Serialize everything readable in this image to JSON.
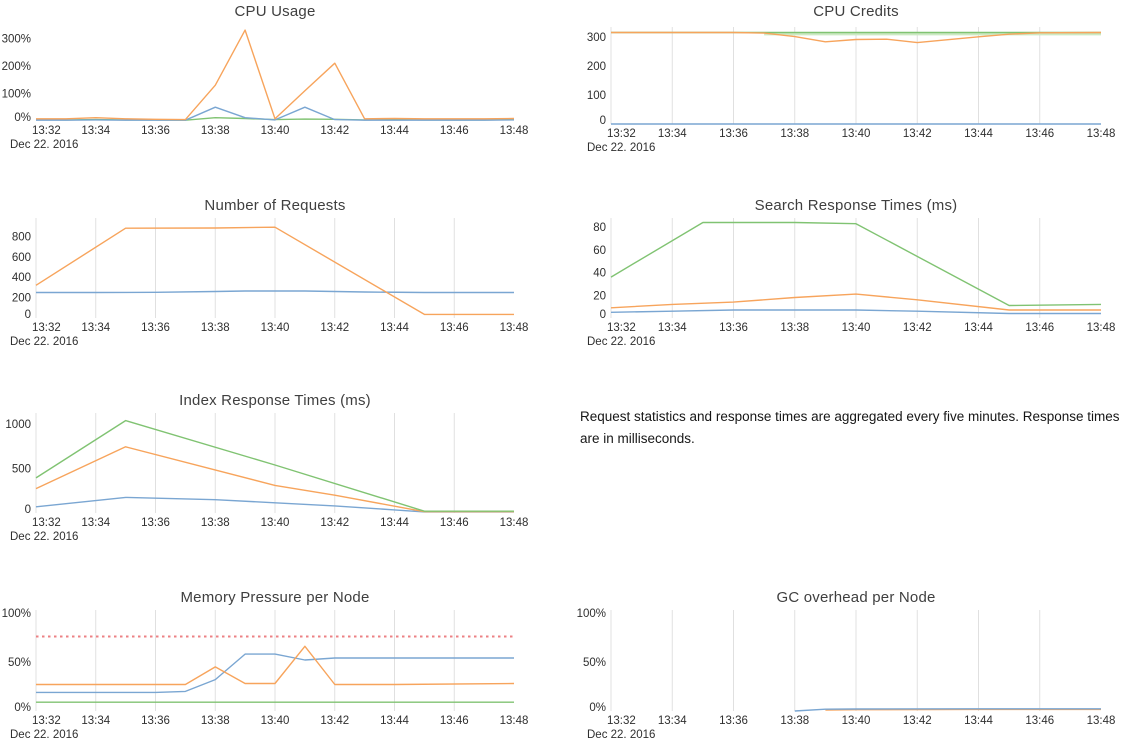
{
  "x_axis": {
    "ticks": [
      "13:32",
      "13:34",
      "13:36",
      "13:38",
      "13:40",
      "13:42",
      "13:44",
      "13:46",
      "13:48"
    ],
    "tick_minutes": [
      32,
      34,
      36,
      38,
      40,
      42,
      44,
      46,
      48
    ],
    "date_label": "Dec 22. 2016"
  },
  "note": {
    "text": "Request statistics and response times are aggregated every five minutes. Response times are in milliseconds."
  },
  "colors": {
    "blue": "#7aa6d2",
    "orange": "#f7a45c",
    "green": "#80c372",
    "palegreen": "#cdeac4",
    "red": "#ec8184",
    "grid": "#e0e0e0",
    "tick_text": "#2f2f2f",
    "title_text": "#3f3f3f"
  },
  "chart_data": [
    {
      "title": "CPU Usage",
      "type": "line",
      "xlim": [
        32,
        48
      ],
      "ylim": [
        0,
        345
      ],
      "grid": false,
      "yticks": [
        {
          "v": 0,
          "label": "0%"
        },
        {
          "v": 100,
          "label": "100%"
        },
        {
          "v": 200,
          "label": "200%"
        },
        {
          "v": 300,
          "label": "300%"
        }
      ],
      "series": [
        {
          "name": "green",
          "color": "green",
          "points": [
            [
              32,
              5
            ],
            [
              33,
              4
            ],
            [
              34,
              5
            ],
            [
              35,
              4
            ],
            [
              36,
              4
            ],
            [
              37,
              3
            ],
            [
              38,
              12
            ],
            [
              39,
              9
            ],
            [
              40,
              5
            ],
            [
              41,
              7
            ],
            [
              42,
              6
            ],
            [
              43,
              4
            ],
            [
              44,
              5
            ],
            [
              45,
              4
            ],
            [
              46,
              4
            ],
            [
              47,
              4
            ],
            [
              48,
              5
            ]
          ]
        },
        {
          "name": "blue",
          "color": "blue",
          "points": [
            [
              32,
              3
            ],
            [
              33,
              3
            ],
            [
              34,
              4
            ],
            [
              35,
              3
            ],
            [
              36,
              3
            ],
            [
              37,
              3
            ],
            [
              38,
              50
            ],
            [
              39,
              12
            ],
            [
              40,
              4
            ],
            [
              41,
              50
            ],
            [
              42,
              5
            ],
            [
              43,
              3
            ],
            [
              44,
              3
            ],
            [
              45,
              3
            ],
            [
              46,
              3
            ],
            [
              47,
              3
            ],
            [
              48,
              4
            ]
          ]
        },
        {
          "name": "orange",
          "color": "orange",
          "points": [
            [
              32,
              8
            ],
            [
              33,
              8
            ],
            [
              34,
              12
            ],
            [
              35,
              8
            ],
            [
              36,
              6
            ],
            [
              37,
              5
            ],
            [
              38,
              130
            ],
            [
              39,
              330
            ],
            [
              40,
              8
            ],
            [
              41,
              110
            ],
            [
              42,
              210
            ],
            [
              43,
              8
            ],
            [
              44,
              9
            ],
            [
              45,
              8
            ],
            [
              46,
              8
            ],
            [
              47,
              8
            ],
            [
              48,
              9
            ]
          ]
        }
      ]
    },
    {
      "title": "CPU Credits",
      "type": "line",
      "xlim": [
        32,
        48
      ],
      "ylim": [
        0,
        335
      ],
      "grid": true,
      "yticks": [
        {
          "v": 0,
          "label": "0"
        },
        {
          "v": 100,
          "label": "100"
        },
        {
          "v": 200,
          "label": "200"
        },
        {
          "v": 300,
          "label": "300"
        }
      ],
      "series": [
        {
          "name": "palegreen",
          "color": "palegreen",
          "width": 3,
          "points": [
            [
              37,
              311
            ],
            [
              48,
              311
            ]
          ]
        },
        {
          "name": "green",
          "color": "green",
          "points": [
            [
              32,
              316
            ],
            [
              48,
              316
            ]
          ]
        },
        {
          "name": "orange",
          "color": "orange",
          "points": [
            [
              32,
              316
            ],
            [
              36,
              316
            ],
            [
              37,
              314
            ],
            [
              38,
              302
            ],
            [
              39,
              284
            ],
            [
              40,
              292
            ],
            [
              41,
              293
            ],
            [
              42,
              281
            ],
            [
              43,
              291
            ],
            [
              44,
              301
            ],
            [
              45,
              310
            ],
            [
              46,
              315
            ],
            [
              48,
              316
            ]
          ]
        },
        {
          "name": "blue",
          "color": "blue",
          "points": [
            [
              32,
              0
            ],
            [
              48,
              0
            ]
          ]
        }
      ]
    },
    {
      "title": "Number of Requests",
      "type": "line",
      "xlim": [
        32,
        48
      ],
      "ylim": [
        0,
        980
      ],
      "grid": true,
      "yticks": [
        {
          "v": 0,
          "label": "0"
        },
        {
          "v": 200,
          "label": "200"
        },
        {
          "v": 400,
          "label": "400"
        },
        {
          "v": 600,
          "label": "600"
        },
        {
          "v": 800,
          "label": "800"
        }
      ],
      "series": [
        {
          "name": "blue",
          "color": "blue",
          "points": [
            [
              32,
              250
            ],
            [
              34,
              250
            ],
            [
              36,
              252
            ],
            [
              38,
              260
            ],
            [
              39,
              265
            ],
            [
              41,
              265
            ],
            [
              43,
              255
            ],
            [
              45,
              250
            ],
            [
              48,
              250
            ]
          ]
        },
        {
          "name": "orange",
          "color": "orange",
          "points": [
            [
              32,
              320
            ],
            [
              35,
              880
            ],
            [
              38,
              882
            ],
            [
              40,
              890
            ],
            [
              45,
              35
            ],
            [
              48,
              35
            ]
          ]
        }
      ]
    },
    {
      "title": "Search Response Times (ms)",
      "type": "line",
      "xlim": [
        32,
        48
      ],
      "ylim": [
        0,
        88
      ],
      "grid": true,
      "yticks": [
        {
          "v": 0,
          "label": "0"
        },
        {
          "v": 20,
          "label": "20"
        },
        {
          "v": 40,
          "label": "40"
        },
        {
          "v": 60,
          "label": "60"
        },
        {
          "v": 80,
          "label": "80"
        }
      ],
      "series": [
        {
          "name": "blue",
          "color": "blue",
          "points": [
            [
              32,
              5
            ],
            [
              34,
              6
            ],
            [
              36,
              7
            ],
            [
              38,
              7
            ],
            [
              40,
              7
            ],
            [
              42,
              6
            ],
            [
              45,
              4
            ],
            [
              48,
              4
            ]
          ]
        },
        {
          "name": "orange",
          "color": "orange",
          "points": [
            [
              32,
              9
            ],
            [
              34,
              12
            ],
            [
              36,
              14
            ],
            [
              38,
              18
            ],
            [
              40,
              21
            ],
            [
              42,
              16
            ],
            [
              45,
              7
            ],
            [
              48,
              7
            ]
          ]
        },
        {
          "name": "green",
          "color": "green",
          "points": [
            [
              32,
              36
            ],
            [
              35,
              84
            ],
            [
              38,
              84
            ],
            [
              40,
              83
            ],
            [
              45,
              11
            ],
            [
              48,
              12
            ]
          ]
        }
      ]
    },
    {
      "title": "Index Response Times (ms)",
      "type": "line",
      "xlim": [
        32,
        48
      ],
      "ylim": [
        0,
        1125
      ],
      "grid": true,
      "yticks": [
        {
          "v": 0,
          "label": "0"
        },
        {
          "v": 500,
          "label": "500"
        },
        {
          "v": 1000,
          "label": "1000"
        }
      ],
      "series": [
        {
          "name": "blue",
          "color": "blue",
          "points": [
            [
              32,
              70
            ],
            [
              35,
              175
            ],
            [
              38,
              150
            ],
            [
              40,
              115
            ],
            [
              42,
              80
            ],
            [
              44,
              35
            ],
            [
              45,
              12
            ],
            [
              48,
              12
            ]
          ]
        },
        {
          "name": "orange",
          "color": "orange",
          "points": [
            [
              32,
              275
            ],
            [
              35,
              745
            ],
            [
              40,
              310
            ],
            [
              42,
              200
            ],
            [
              45,
              15
            ],
            [
              48,
              15
            ]
          ]
        },
        {
          "name": "green",
          "color": "green",
          "points": [
            [
              32,
              395
            ],
            [
              35,
              1040
            ],
            [
              40,
              540
            ],
            [
              45,
              20
            ],
            [
              48,
              20
            ]
          ]
        }
      ]
    },
    {
      "title": "Memory Pressure per Node",
      "type": "line",
      "xlim": [
        32,
        48
      ],
      "ylim": [
        0,
        103
      ],
      "grid": true,
      "yticks": [
        {
          "v": 0,
          "label": "0%"
        },
        {
          "v": 50,
          "label": "50%"
        },
        {
          "v": 100,
          "label": "100%"
        }
      ],
      "series": [
        {
          "name": "red-threshold",
          "color": "red",
          "dash": true,
          "width": 2,
          "points": [
            [
              32,
              76
            ],
            [
              48,
              76
            ]
          ]
        },
        {
          "name": "green",
          "color": "green",
          "points": [
            [
              32,
              9
            ],
            [
              48,
              9
            ]
          ]
        },
        {
          "name": "blue",
          "color": "blue",
          "points": [
            [
              32,
              19
            ],
            [
              36,
              19
            ],
            [
              37,
              20
            ],
            [
              38,
              32
            ],
            [
              39,
              58
            ],
            [
              40,
              58
            ],
            [
              41,
              52
            ],
            [
              42,
              54
            ],
            [
              48,
              54
            ]
          ]
        },
        {
          "name": "orange",
          "color": "orange",
          "points": [
            [
              32,
              27
            ],
            [
              36,
              27
            ],
            [
              37,
              27
            ],
            [
              38,
              45
            ],
            [
              39,
              28
            ],
            [
              40,
              28
            ],
            [
              41,
              66
            ],
            [
              42,
              27
            ],
            [
              44,
              27
            ],
            [
              48,
              28
            ]
          ]
        }
      ]
    },
    {
      "title": "GC overhead per Node",
      "type": "line",
      "xlim": [
        32,
        48
      ],
      "ylim": [
        0,
        103
      ],
      "grid": true,
      "yticks": [
        {
          "v": 0,
          "label": "0%"
        },
        {
          "v": 50,
          "label": "50%"
        },
        {
          "v": 100,
          "label": "100%"
        }
      ],
      "series": [
        {
          "name": "orange",
          "color": "orange",
          "points": [
            [
              39,
              1
            ],
            [
              40,
              1.3
            ],
            [
              44,
              1.6
            ],
            [
              48,
              1.6
            ]
          ]
        },
        {
          "name": "blue",
          "color": "blue",
          "points": [
            [
              38,
              0
            ],
            [
              39,
              1.8
            ],
            [
              40,
              2
            ],
            [
              44,
              2.2
            ],
            [
              48,
              2.2
            ]
          ]
        }
      ]
    }
  ]
}
